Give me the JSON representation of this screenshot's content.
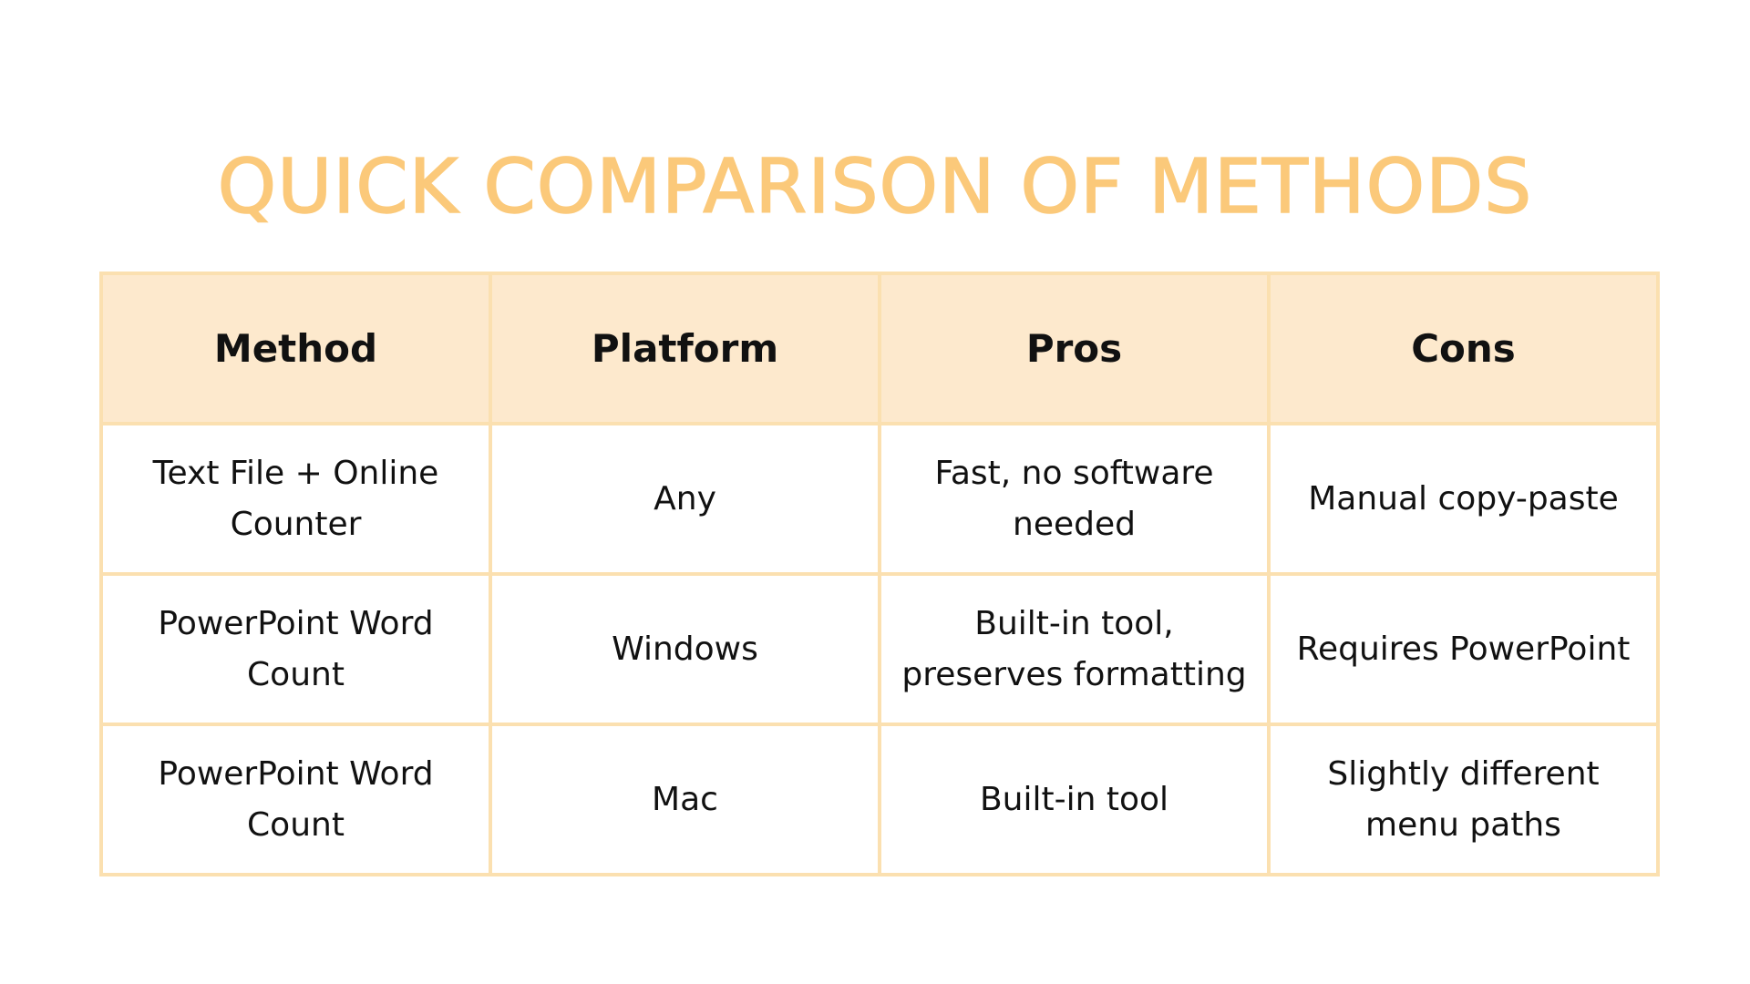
{
  "slide": {
    "title": "QUICK COMPARISON OF METHODS"
  },
  "table": {
    "headers": [
      "Method",
      "Platform",
      "Pros",
      "Cons"
    ],
    "rows": [
      [
        "Text File + Online Counter",
        "Any",
        "Fast, no software needed",
        "Manual copy-paste"
      ],
      [
        "PowerPoint Word Count",
        "Windows",
        "Built-in tool, preserves formatting",
        "Requires PowerPoint"
      ],
      [
        "PowerPoint Word Count",
        "Mac",
        "Built-in tool",
        "Slightly different menu paths"
      ]
    ]
  },
  "colors": {
    "title": "#fbc97a",
    "header_bg": "#fde9cd",
    "border": "#fbe0b0",
    "text": "#111111"
  }
}
